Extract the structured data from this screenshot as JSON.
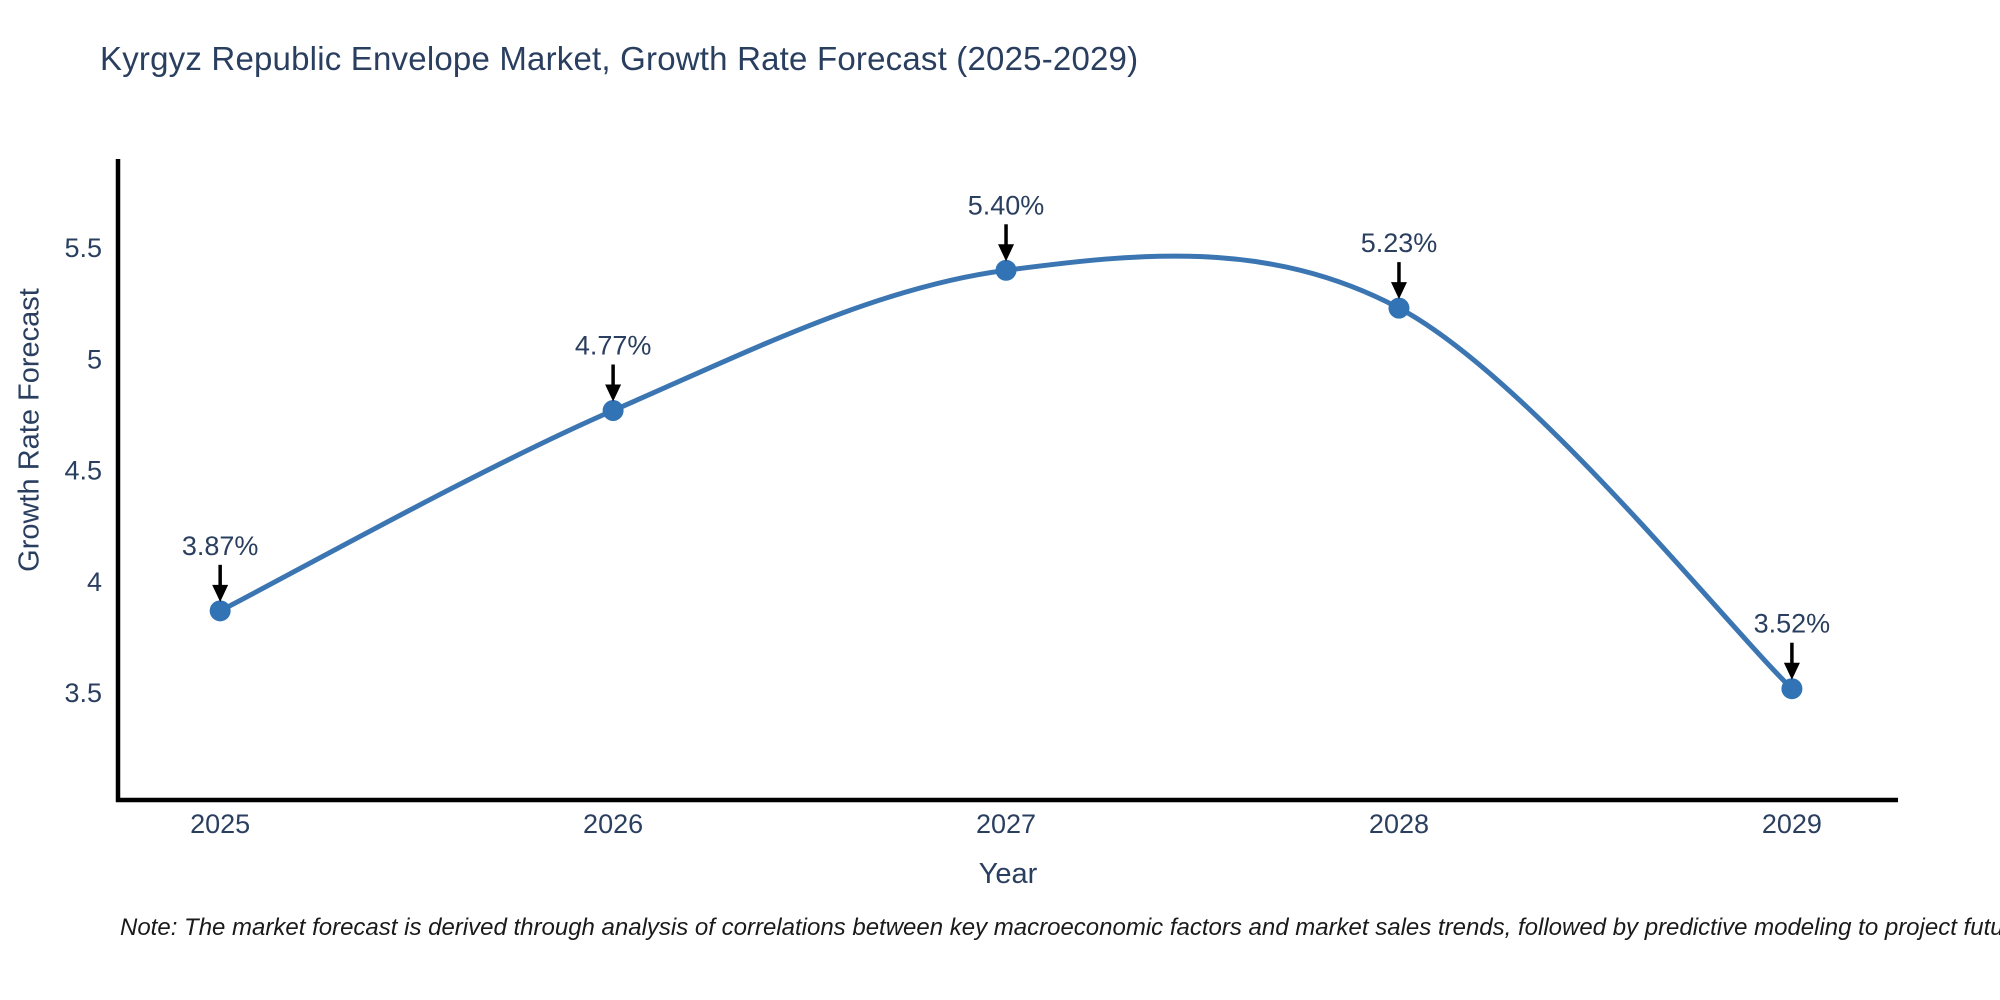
{
  "page": {
    "title": "Kyrgyz Republic Envelope Market, Growth Rate Forecast (2025-2029)"
  },
  "note": {
    "text": "Note: The market forecast is derived through analysis of correlations between key macroeconomic factors and market sales trends, followed by predictive modeling to project future sales"
  },
  "chart_data": {
    "type": "line",
    "title": "Kyrgyz Republic Envelope Market, Growth Rate Forecast (2025-2029)",
    "x": [
      2025,
      2026,
      2027,
      2028,
      2029
    ],
    "y": [
      3.87,
      4.77,
      5.4,
      5.23,
      3.52
    ],
    "point_labels": [
      "3.87%",
      "4.77%",
      "5.40%",
      "5.23%",
      "3.52%"
    ],
    "xlabel": "Year",
    "ylabel": "Growth Rate Forecast",
    "xticks": [
      "2025",
      "2026",
      "2027",
      "2028",
      "2029"
    ],
    "yticks": [
      3.5,
      4,
      4.5,
      5,
      5.5
    ],
    "ytick_labels": [
      "3.5",
      "4",
      "4.5",
      "5",
      "5.5"
    ],
    "xlim": [
      2024.74,
      2029.27
    ],
    "ylim": [
      3.02,
      5.9
    ],
    "grid": false,
    "legend": false,
    "line_shape": "spline",
    "line_color": "#3b76b2",
    "marker_color": "#3173b5",
    "annotation_arrow_color": "#000000",
    "text_color": "#2a3f5f",
    "axis_color": "#000000"
  }
}
